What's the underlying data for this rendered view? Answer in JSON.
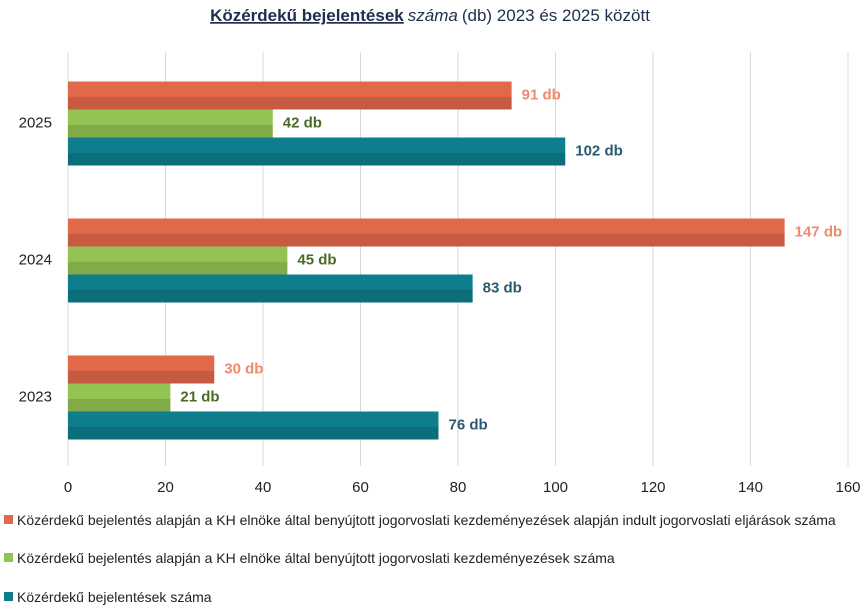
{
  "chart_data": {
    "type": "barh",
    "title": [
      "Közérdekű bejelentések",
      "száma",
      "(db) 2023 és 2025 között"
    ],
    "categories": [
      "2023",
      "2024",
      "2025"
    ],
    "series": [
      {
        "name": "Közérdekű bejelentés alapján a KH elnöke által benyújtott jogorvoslati kezdeményezések alapján indult jogorvoslati eljárások száma",
        "color": "#e2684a",
        "label_color": "#f08a6c",
        "values": [
          30,
          147,
          91
        ],
        "value_labels": [
          "30 db",
          "147 db",
          "91 db"
        ]
      },
      {
        "name": "Közérdekű bejelentés alapján a KH elnöke által benyújtott jogorvoslati kezdeményezések száma",
        "color": "#92c353",
        "label_color": "#4a6a25",
        "values": [
          21,
          45,
          42
        ],
        "value_labels": [
          "21 db",
          "45 db",
          "42 db"
        ]
      },
      {
        "name": "Közérdekű bejelentések száma",
        "color": "#0e7d8c",
        "label_color": "#2a5a6e",
        "values": [
          76,
          83,
          102
        ],
        "value_labels": [
          "76 db",
          "83 db",
          "102 db"
        ]
      }
    ],
    "xlim": [
      0,
      160
    ],
    "xticks": [
      0,
      20,
      40,
      60,
      80,
      100,
      120,
      140,
      160
    ],
    "grid": true
  }
}
